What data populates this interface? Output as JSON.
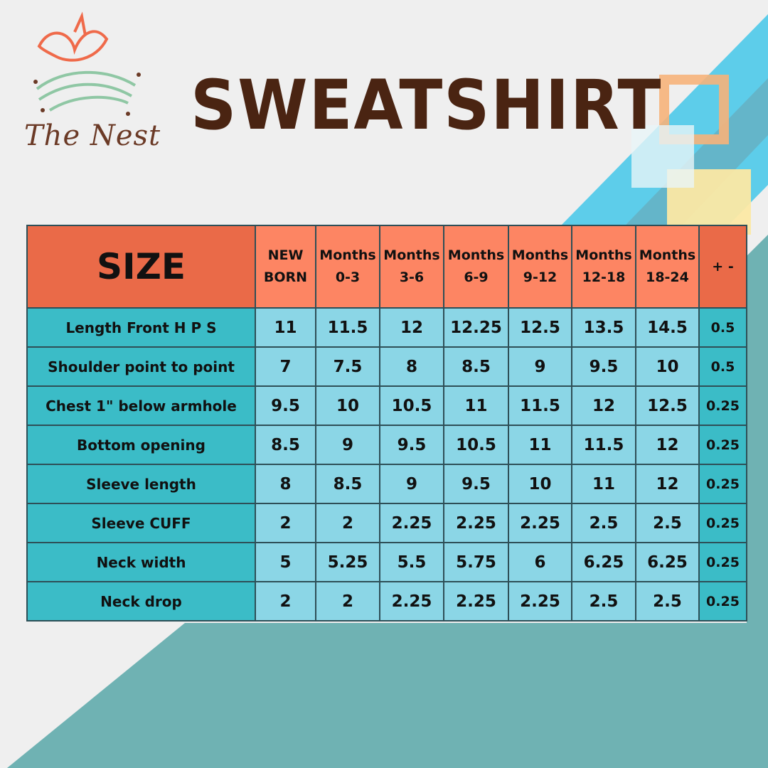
{
  "brand": {
    "name": "The Nest"
  },
  "title": "SWEATSHIRT",
  "colors": {
    "header": "#fd8563",
    "header_dark": "#ea6a48",
    "label_cell": "#3bbcc7",
    "value_cell": "#8bd6e6",
    "title": "#4a2412"
  },
  "table": {
    "corner": "SIZE",
    "columns": [
      {
        "line1": "NEW",
        "line2": "BORN"
      },
      {
        "line1": "Months",
        "line2": "0-3"
      },
      {
        "line1": "Months",
        "line2": "3-6"
      },
      {
        "line1": "Months",
        "line2": "6-9"
      },
      {
        "line1": "Months",
        "line2": "9-12"
      },
      {
        "line1": "Months",
        "line2": "12-18"
      },
      {
        "line1": "Months",
        "line2": "18-24"
      }
    ],
    "tolerance_header": "+ -",
    "rows": [
      {
        "label": "Length Front H P S",
        "values": [
          "11",
          "11.5",
          "12",
          "12.25",
          "12.5",
          "13.5",
          "14.5"
        ],
        "tol": "0.5"
      },
      {
        "label": "Shoulder point to point",
        "values": [
          "7",
          "7.5",
          "8",
          "8.5",
          "9",
          "9.5",
          "10"
        ],
        "tol": "0.5"
      },
      {
        "label": "Chest 1\" below armhole",
        "values": [
          "9.5",
          "10",
          "10.5",
          "11",
          "11.5",
          "12",
          "12.5"
        ],
        "tol": "0.25"
      },
      {
        "label": "Bottom opening",
        "values": [
          "8.5",
          "9",
          "9.5",
          "10.5",
          "11",
          "11.5",
          "12"
        ],
        "tol": "0.25"
      },
      {
        "label": "Sleeve length",
        "values": [
          "8",
          "8.5",
          "9",
          "9.5",
          "10",
          "11",
          "12"
        ],
        "tol": "0.25"
      },
      {
        "label": "Sleeve CUFF",
        "values": [
          "2",
          "2",
          "2.25",
          "2.25",
          "2.25",
          "2.5",
          "2.5"
        ],
        "tol": "0.25"
      },
      {
        "label": "Neck width",
        "values": [
          "5",
          "5.25",
          "5.5",
          "5.75",
          "6",
          "6.25",
          "6.25"
        ],
        "tol": "0.25"
      },
      {
        "label": "Neck drop",
        "values": [
          "2",
          "2",
          "2.25",
          "2.25",
          "2.25",
          "2.5",
          "2.5"
        ],
        "tol": "0.25"
      }
    ]
  }
}
